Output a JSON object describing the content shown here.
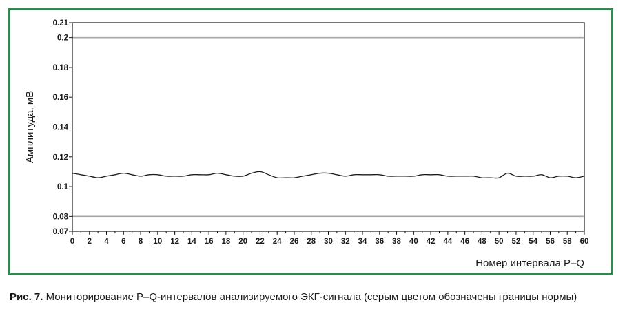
{
  "chart_data": {
    "type": "line",
    "xlabel": "Номер интервала P–Q",
    "ylabel": "Амплитуда, мВ",
    "xlim": [
      0,
      60
    ],
    "ylim": [
      0.07,
      0.21
    ],
    "x_ticks": [
      "0",
      "2",
      "4",
      "6",
      "8",
      "10",
      "12",
      "14",
      "16",
      "18",
      "20",
      "22",
      "24",
      "26",
      "28",
      "30",
      "32",
      "34",
      "36",
      "38",
      "40",
      "42",
      "44",
      "46",
      "48",
      "50",
      "52",
      "54",
      "56",
      "58",
      "60"
    ],
    "y_ticks": [
      {
        "value": 0.07,
        "label": "0.07"
      },
      {
        "value": 0.08,
        "label": "0.08"
      },
      {
        "value": 0.1,
        "label": "0.1"
      },
      {
        "value": 0.12,
        "label": "0.12"
      },
      {
        "value": 0.14,
        "label": "0.14"
      },
      {
        "value": 0.16,
        "label": "0.16"
      },
      {
        "value": 0.18,
        "label": "0.18"
      },
      {
        "value": 0.2,
        "label": "0.2"
      },
      {
        "value": 0.21,
        "label": "0.21"
      }
    ],
    "norm_bounds": [
      0.08,
      0.2
    ],
    "norm_color": "#a6a6a6",
    "line_color": "#1a1a1a",
    "series": [
      {
        "x": [
          0,
          1,
          2,
          3,
          4,
          5,
          6,
          7,
          8,
          9,
          10,
          11,
          12,
          13,
          14,
          15,
          16,
          17,
          18,
          19,
          20,
          21,
          22,
          23,
          24,
          25,
          26,
          27,
          28,
          29,
          30,
          31,
          32,
          33,
          34,
          35,
          36,
          37,
          38,
          39,
          40,
          41,
          42,
          43,
          44,
          45,
          46,
          47,
          48,
          49,
          50,
          51,
          52,
          53,
          54,
          55,
          56,
          57,
          58,
          59,
          60
        ],
        "values": [
          0.109,
          0.108,
          0.107,
          0.106,
          0.107,
          0.108,
          0.109,
          0.108,
          0.107,
          0.108,
          0.108,
          0.107,
          0.107,
          0.107,
          0.108,
          0.108,
          0.108,
          0.109,
          0.108,
          0.107,
          0.107,
          0.109,
          0.11,
          0.108,
          0.106,
          0.106,
          0.106,
          0.107,
          0.108,
          0.109,
          0.109,
          0.108,
          0.107,
          0.108,
          0.108,
          0.108,
          0.108,
          0.107,
          0.107,
          0.107,
          0.107,
          0.108,
          0.108,
          0.108,
          0.107,
          0.107,
          0.107,
          0.107,
          0.106,
          0.106,
          0.106,
          0.109,
          0.107,
          0.107,
          0.107,
          0.108,
          0.106,
          0.107,
          0.107,
          0.106,
          0.107
        ]
      }
    ]
  },
  "caption": {
    "label": "Рис. 7.",
    "text": " Мониторирование P–Q-интервалов анализируемого ЭКГ-сигнала (серым цветом обозначены границы нормы)"
  }
}
